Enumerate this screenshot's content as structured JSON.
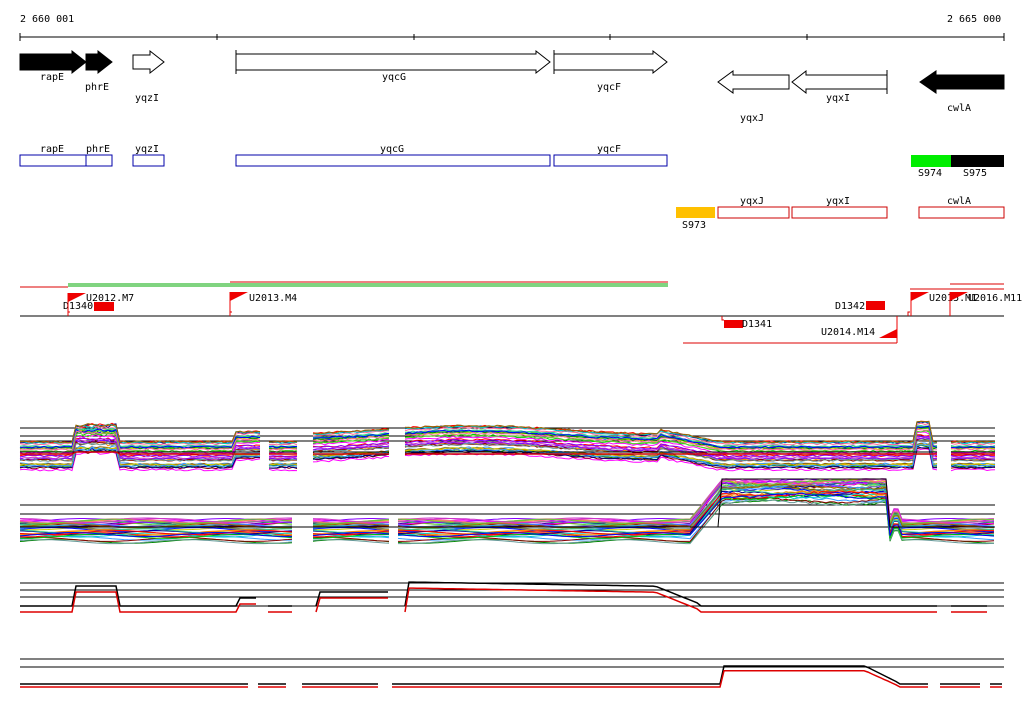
{
  "ruler": {
    "start_label": "2 660 001",
    "end_label": "2 665 000"
  },
  "genes": [
    {
      "label": "rapE",
      "strand": "+",
      "style": "filled"
    },
    {
      "label": "phrE",
      "strand": "+",
      "style": "filled"
    },
    {
      "label": "yqzI",
      "strand": "+",
      "style": "outline"
    },
    {
      "label": "yqcG",
      "strand": "+",
      "style": "outline"
    },
    {
      "label": "yqcF",
      "strand": "+",
      "style": "outline"
    },
    {
      "label": "yqxJ",
      "strand": "-",
      "style": "outline"
    },
    {
      "label": "yqxI",
      "strand": "-",
      "style": "outline"
    },
    {
      "label": "cwlA",
      "strand": "-",
      "style": "filled"
    }
  ],
  "plus_boxes": [
    "rapE",
    "phrE",
    "yqzI",
    "yqcG",
    "yqcF"
  ],
  "minus_boxes": [
    "yqxJ",
    "yqxI",
    "cwlA"
  ],
  "segments": [
    {
      "label": "S974",
      "color": "#00ee00"
    },
    {
      "label": "S975",
      "color": "#000000"
    },
    {
      "label": "S973",
      "color": "#ffc000"
    }
  ],
  "features": [
    {
      "label": "D1340"
    },
    {
      "label": "U2012.M7"
    },
    {
      "label": "U2013.M4"
    },
    {
      "label": "D1342"
    },
    {
      "label": "D1341"
    },
    {
      "label": "U2014.M14"
    },
    {
      "label": "U2015.M1"
    },
    {
      "label": "U2016.M11"
    }
  ],
  "colors": {
    "plus_box": "#0000aa",
    "minus_box": "#cc0000",
    "transcript_green": "#00aa00",
    "transcript_red": "#dd0000",
    "marker": "#ee0000"
  }
}
